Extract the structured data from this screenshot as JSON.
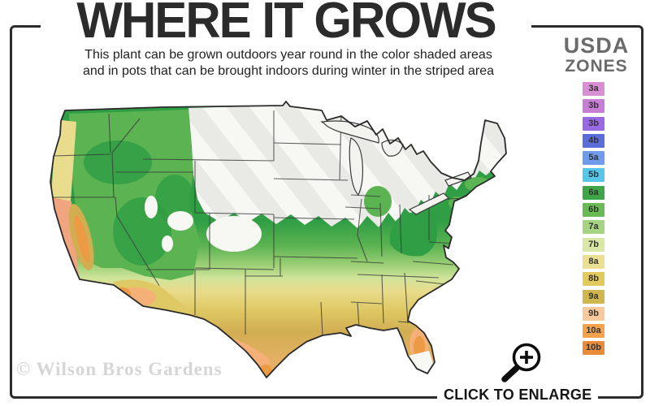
{
  "header": {
    "title": "WHERE IT GROWS",
    "subtitle_line1": "This plant can be grown outdoors year round in the color shaded areas",
    "subtitle_line2": "and in pots that can be brought indoors during winter in the striped area"
  },
  "legend": {
    "title_line1": "USDA",
    "title_line2": "ZONES",
    "zones": [
      {
        "label": "3a",
        "color": "#d88fd3"
      },
      {
        "label": "3b",
        "color": "#c77fd6"
      },
      {
        "label": "3b",
        "color": "#9a6ae4"
      },
      {
        "label": "4b",
        "color": "#5a6eda"
      },
      {
        "label": "5a",
        "color": "#6f9bea"
      },
      {
        "label": "5b",
        "color": "#58c6e9"
      },
      {
        "label": "6a",
        "color": "#3fa549"
      },
      {
        "label": "6b",
        "color": "#69ba55"
      },
      {
        "label": "7a",
        "color": "#a7d383"
      },
      {
        "label": "7b",
        "color": "#d9e8a4"
      },
      {
        "label": "8a",
        "color": "#ebdf91"
      },
      {
        "label": "8b",
        "color": "#e2cb5c"
      },
      {
        "label": "9a",
        "color": "#cfb64f"
      },
      {
        "label": "9b",
        "color": "#f8c99c"
      },
      {
        "label": "10a",
        "color": "#f4a34c"
      },
      {
        "label": "10b",
        "color": "#e98b39"
      }
    ]
  },
  "map": {
    "region": "United States (contiguous)",
    "palette": {
      "base_white": "#f7f7f4",
      "stripe_gray": "#e9e9e5",
      "green_dark": "#2f9e44",
      "green_mid": "#5cb351",
      "green_light": "#9ed077",
      "yellow_green": "#cfe49a",
      "khaki": "#e9dc8c",
      "gold": "#dfc964",
      "gold_dark": "#d2ae53",
      "warm_tan": "#dfb05e",
      "peach": "#f5b078",
      "orange": "#ec9a44",
      "coast_salmon": "#f0a57e",
      "outline": "#2b2b2b",
      "state_line": "#3a3a3a",
      "lake_fill": "#f3f3f0"
    }
  },
  "watermark": "© Wilson Bros Gardens",
  "footer": {
    "enlarge_label": "CLICK TO ENLARGE"
  }
}
